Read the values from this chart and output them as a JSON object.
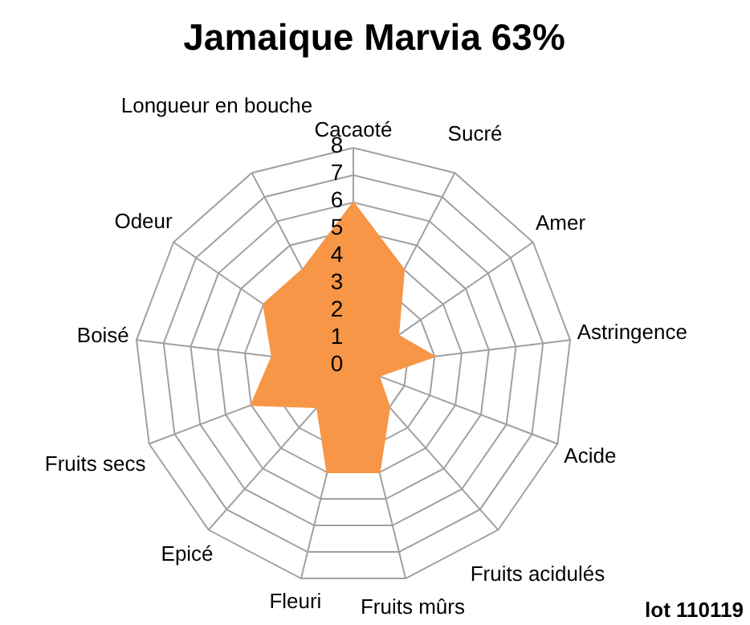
{
  "chart_data": {
    "type": "radar",
    "title": "Jamaique Marvia 63%",
    "categories": [
      "Cacaoté",
      "Sucré",
      "Amer",
      "Astringence",
      "Acide",
      "Fruits acidulés",
      "Fruits mûrs",
      "Fleuri",
      "Epicé",
      "Fruits secs",
      "Boisé",
      "Odeur",
      "Longueur en bouche"
    ],
    "series": [
      {
        "color": "#f79646",
        "values": [
          6,
          4,
          2,
          3,
          1,
          2,
          4,
          4,
          2,
          4,
          3,
          4,
          4
        ]
      }
    ],
    "ylim": [
      0,
      8
    ],
    "yticks": [
      0,
      1,
      2,
      3,
      4,
      5,
      6,
      7,
      8
    ],
    "grid": true,
    "annotations": [
      "lot 110119"
    ]
  }
}
